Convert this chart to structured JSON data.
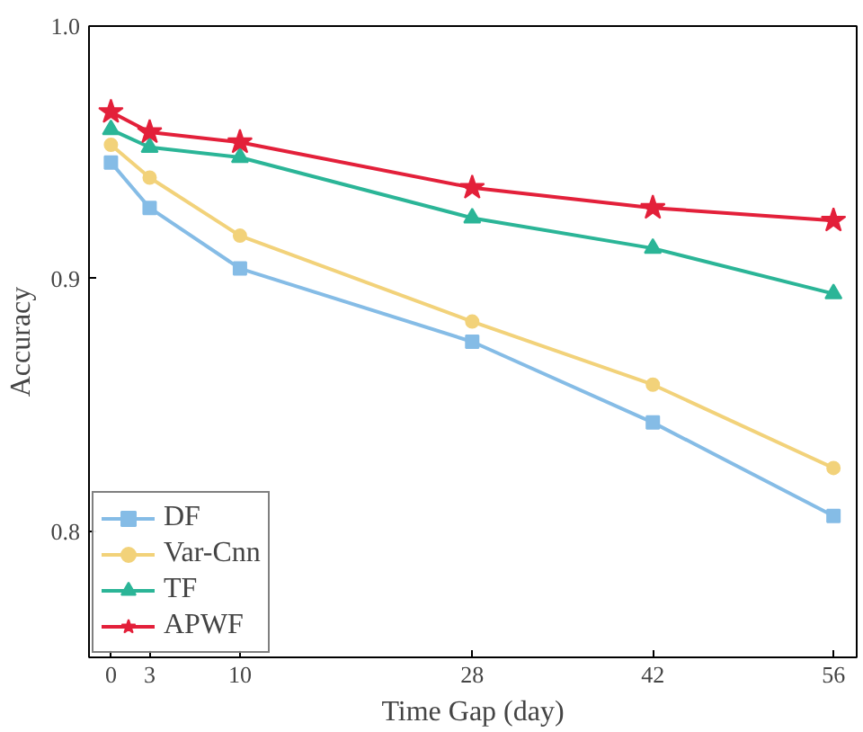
{
  "chart_data": {
    "type": "line",
    "xlabel": "Time Gap (day)",
    "ylabel": "Accuracy",
    "x": [
      0,
      3,
      10,
      28,
      42,
      56
    ],
    "xlim": [
      -1.7,
      57.8
    ],
    "xticks": [
      0,
      3,
      10,
      28,
      42,
      56
    ],
    "ylim": [
      0.75,
      1.0
    ],
    "yticks": [
      0.8,
      0.9,
      {
        "value": 1.0,
        "label": "1.0"
      }
    ],
    "grid": false,
    "legend": "bottom left",
    "series": [
      {
        "name": "DF",
        "color": "#85bce6",
        "marker": "square",
        "values": [
          0.946,
          0.928,
          0.904,
          0.875,
          0.843,
          0.806
        ]
      },
      {
        "name": "Var-Cnn",
        "color": "#f2d27a",
        "marker": "circle",
        "values": [
          0.953,
          0.94,
          0.917,
          0.883,
          0.858,
          0.825
        ]
      },
      {
        "name": "TF",
        "color": "#2bb597",
        "marker": "triangle",
        "values": [
          0.959,
          0.952,
          0.948,
          0.924,
          0.912,
          0.894
        ]
      },
      {
        "name": "APWF",
        "color": "#e3203a",
        "marker": "star",
        "values": [
          0.966,
          0.958,
          0.954,
          0.936,
          0.928,
          0.923
        ]
      }
    ]
  }
}
